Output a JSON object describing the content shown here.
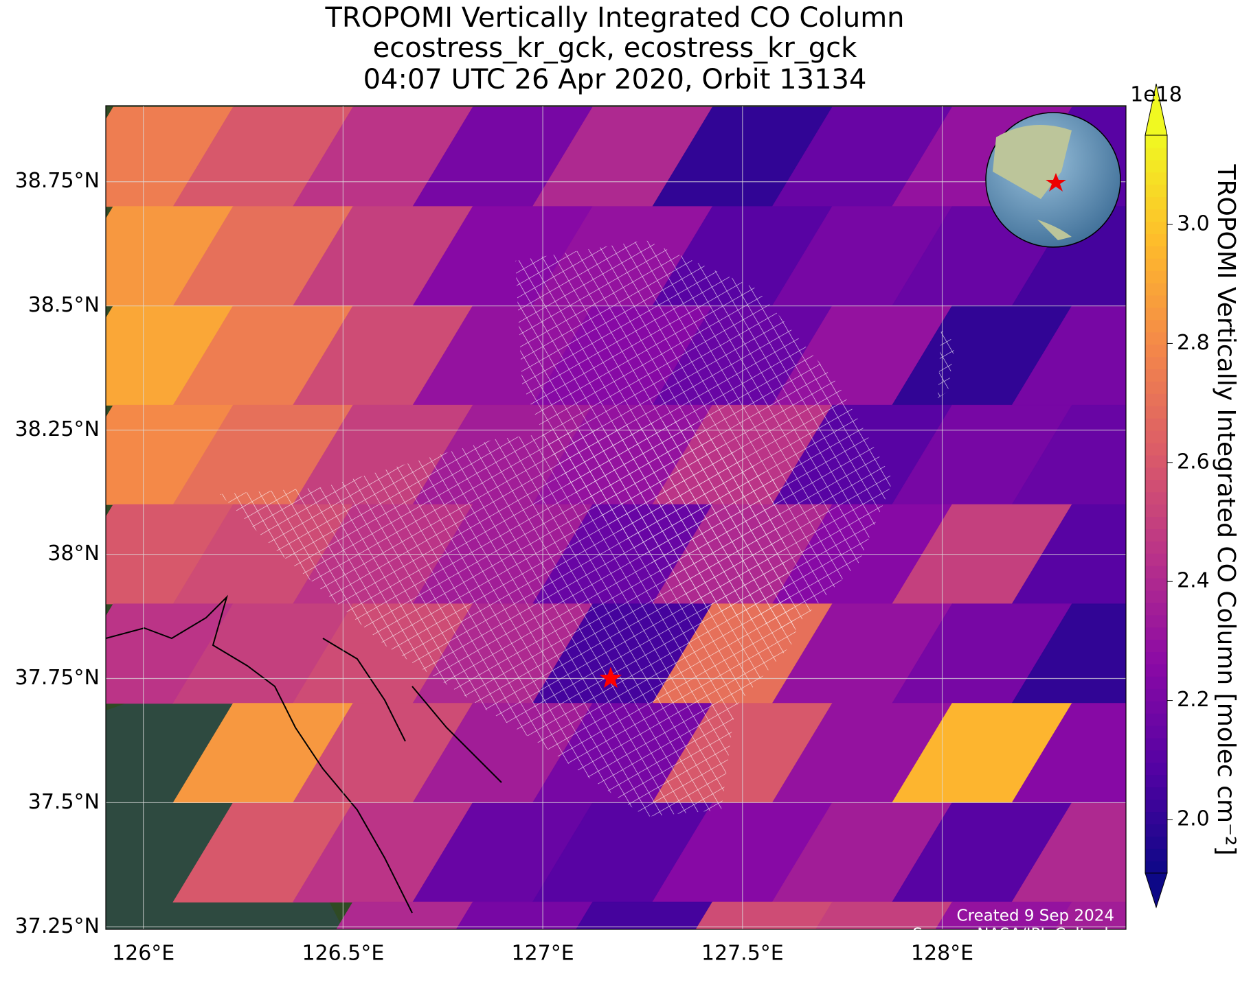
{
  "chart_data": {
    "type": "map",
    "title": [
      "TROPOMI Vertically Integrated CO Column",
      "ecostress_kr_gck, ecostress_kr_gck",
      "04:07 UTC 26 Apr 2020, Orbit 13134"
    ],
    "xlim": [
      125.906,
      128.46
    ],
    "ylim": [
      37.245,
      38.903
    ],
    "xticks": [
      {
        "value": 126,
        "label": "126°E"
      },
      {
        "value": 126.5,
        "label": "126.5°E"
      },
      {
        "value": 127,
        "label": "127°E"
      },
      {
        "value": 127.5,
        "label": "127.5°E"
      },
      {
        "value": 128,
        "label": "128°E"
      }
    ],
    "yticks": [
      {
        "value": 37.25,
        "label": "37.25°N"
      },
      {
        "value": 37.5,
        "label": "37.5°N"
      },
      {
        "value": 37.75,
        "label": "37.75°N"
      },
      {
        "value": 38,
        "label": "38°N"
      },
      {
        "value": 38.25,
        "label": "38.25°N"
      },
      {
        "value": 38.5,
        "label": "38.5°N"
      },
      {
        "value": 38.75,
        "label": "38.75°N"
      }
    ],
    "grid": true,
    "colormap": "plasma",
    "clim": [
      1.91,
      3.15
    ],
    "colorbar_label": "TROPOMI Vertically Integrated CO Column [molec cm⁻²]",
    "colorbar_scale": "1e18",
    "colorbar_ticks": [
      {
        "value": 2.0,
        "label": "2.0"
      },
      {
        "value": 2.2,
        "label": "2.2"
      },
      {
        "value": 2.4,
        "label": "2.4"
      },
      {
        "value": 2.6,
        "label": "2.6"
      },
      {
        "value": 2.8,
        "label": "2.8"
      },
      {
        "value": 3.0,
        "label": "3.0"
      }
    ],
    "lon": [
      126.0,
      126.3,
      126.6,
      126.9,
      127.2,
      127.5,
      127.8,
      128.1,
      128.4
    ],
    "lat": [
      38.8,
      38.6,
      38.4,
      38.2,
      38.0,
      37.8,
      37.6,
      37.4,
      37.2
    ],
    "values": [
      [
        2.75,
        2.6,
        2.45,
        2.2,
        2.4,
        2.0,
        2.15,
        2.3,
        2.1
      ],
      [
        2.85,
        2.7,
        2.5,
        2.25,
        2.3,
        2.1,
        2.2,
        2.15,
        2.05
      ],
      [
        2.9,
        2.75,
        2.55,
        2.3,
        2.25,
        2.15,
        2.3,
        2.0,
        2.2
      ],
      [
        2.8,
        2.7,
        2.5,
        2.35,
        2.3,
        2.45,
        2.1,
        2.2,
        2.15
      ],
      [
        2.6,
        2.55,
        2.45,
        2.35,
        2.15,
        2.4,
        2.25,
        2.5,
        2.1
      ],
      [
        2.45,
        2.5,
        2.55,
        2.4,
        2.05,
        2.7,
        2.3,
        2.2,
        2.0
      ],
      [
        null,
        2.85,
        2.55,
        2.35,
        2.2,
        2.6,
        2.3,
        2.95,
        2.25
      ],
      [
        null,
        2.6,
        2.45,
        2.15,
        2.1,
        2.25,
        2.35,
        2.1,
        2.4
      ],
      [
        null,
        null,
        2.4,
        2.2,
        2.05,
        2.55,
        2.5,
        2.3,
        2.35
      ]
    ],
    "site": {
      "lon": 127.17,
      "lat": 37.75
    },
    "footnotes": [
      "Created 9 Sep 2024",
      "Source: NASA/JPL-Caltech"
    ]
  }
}
